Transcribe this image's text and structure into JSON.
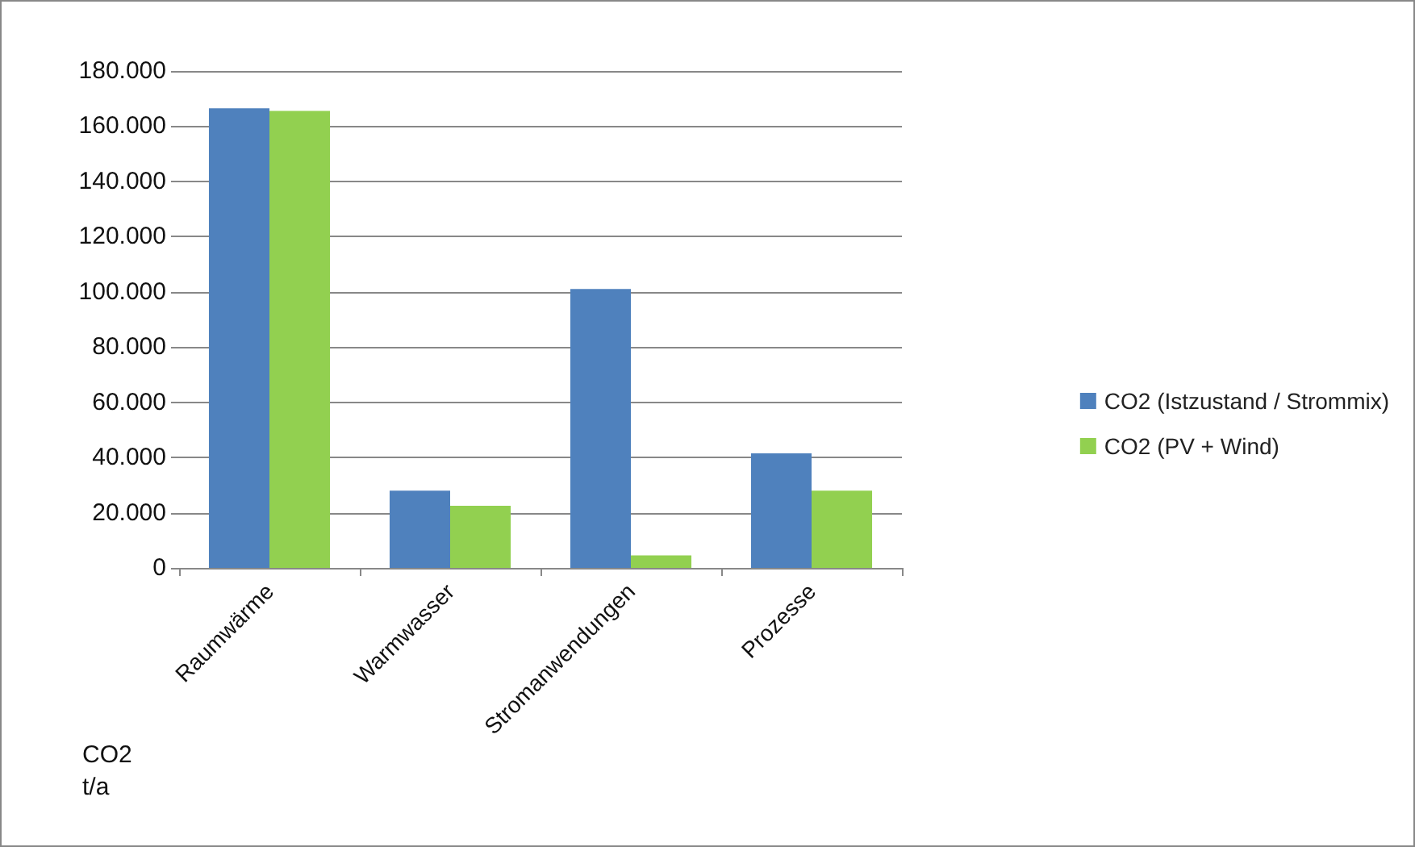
{
  "chart_data": {
    "type": "bar",
    "ylabel": "CO2\nt/a",
    "categories": [
      "Raumwärme",
      "Warmwasser",
      "Stromanwendungen",
      "Prozesse"
    ],
    "series": [
      {
        "name": "CO2 (Istzustand / Strommix)",
        "color": "#4f81bd",
        "values": [
          166500,
          28000,
          101000,
          41500
        ]
      },
      {
        "name": "CO2 (PV + Wind)",
        "color": "#92d050",
        "values": [
          165500,
          22500,
          4500,
          28000
        ]
      }
    ],
    "ylim": [
      0,
      180000
    ],
    "yticks": [
      {
        "value": 0,
        "label": "0"
      },
      {
        "value": 20000,
        "label": "20.000"
      },
      {
        "value": 40000,
        "label": "40.000"
      },
      {
        "value": 60000,
        "label": "60.000"
      },
      {
        "value": 80000,
        "label": "80.000"
      },
      {
        "value": 100000,
        "label": "100.000"
      },
      {
        "value": 120000,
        "label": "120.000"
      },
      {
        "value": 140000,
        "label": "140.000"
      },
      {
        "value": 160000,
        "label": "160.000"
      },
      {
        "value": 180000,
        "label": "180.000"
      }
    ],
    "grid": "y",
    "legend": "right"
  }
}
